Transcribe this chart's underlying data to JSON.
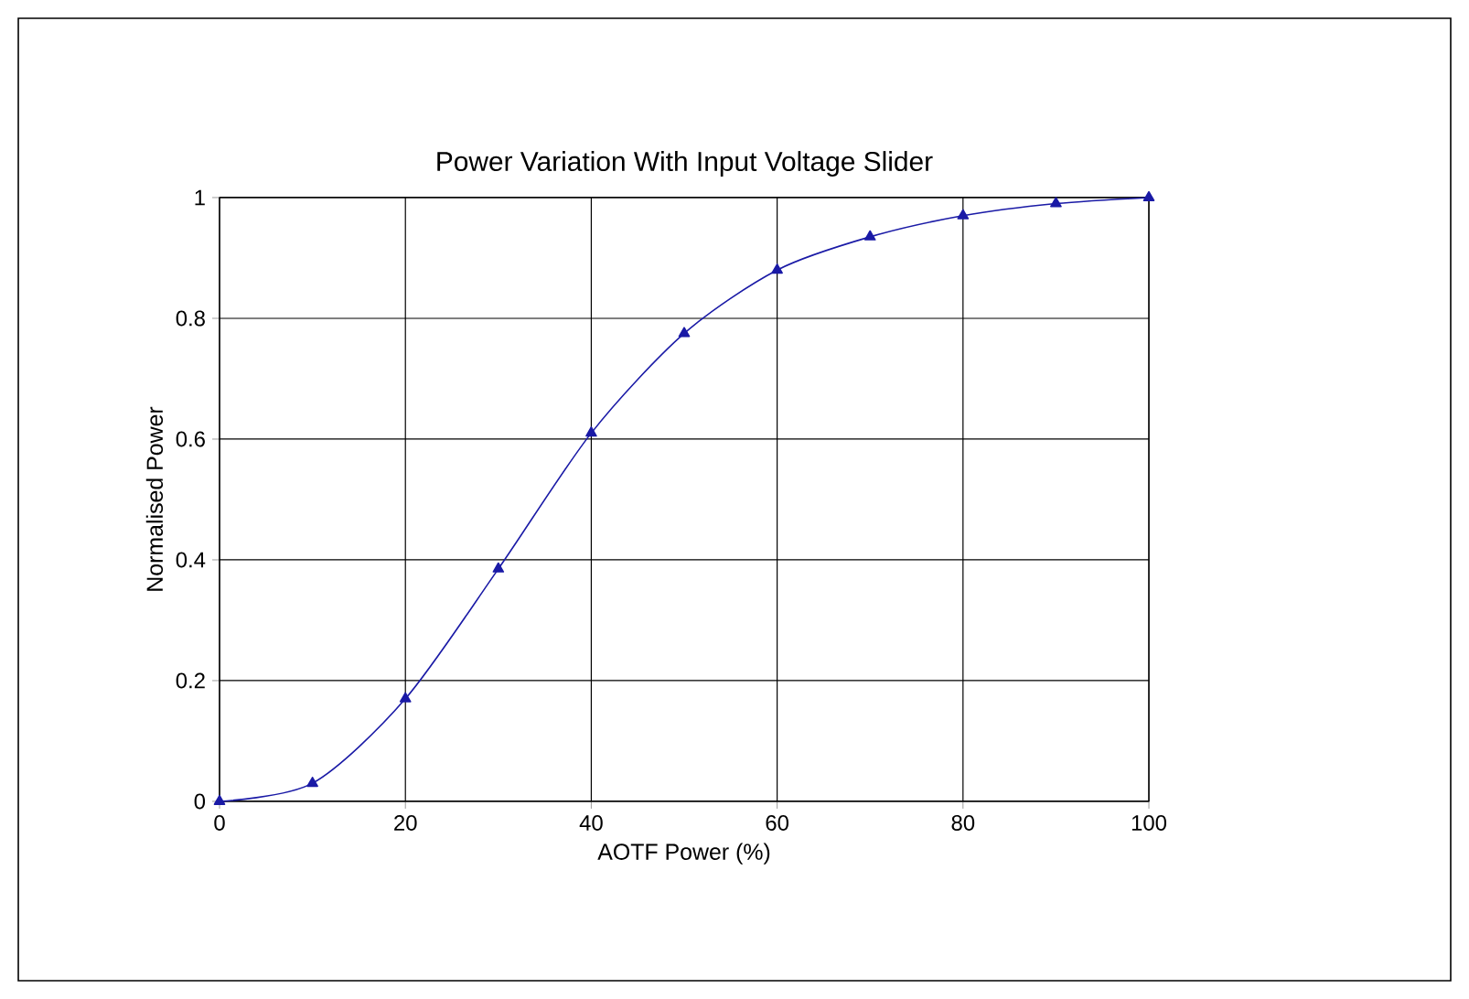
{
  "chart_data": {
    "type": "line",
    "title": "Power  Variation With Input Voltage Slider",
    "xlabel": "AOTF Power (%)",
    "ylabel": "Normalised Power",
    "x": [
      0,
      10,
      20,
      30,
      40,
      50,
      60,
      70,
      80,
      90,
      100
    ],
    "series": [
      {
        "color": "#1a1aa6",
        "values": [
          0,
          0.03,
          0.17,
          0.385,
          0.61,
          0.775,
          0.88,
          0.935,
          0.97,
          0.99,
          1.0
        ]
      }
    ],
    "xlim": [
      0,
      100
    ],
    "ylim": [
      0,
      1
    ],
    "xticks": [
      0,
      20,
      40,
      60,
      80,
      100
    ],
    "yticks": [
      0,
      0.2,
      0.4,
      0.6,
      0.8,
      1
    ],
    "grid": true,
    "marker": "triangle",
    "line_style": "solid"
  }
}
